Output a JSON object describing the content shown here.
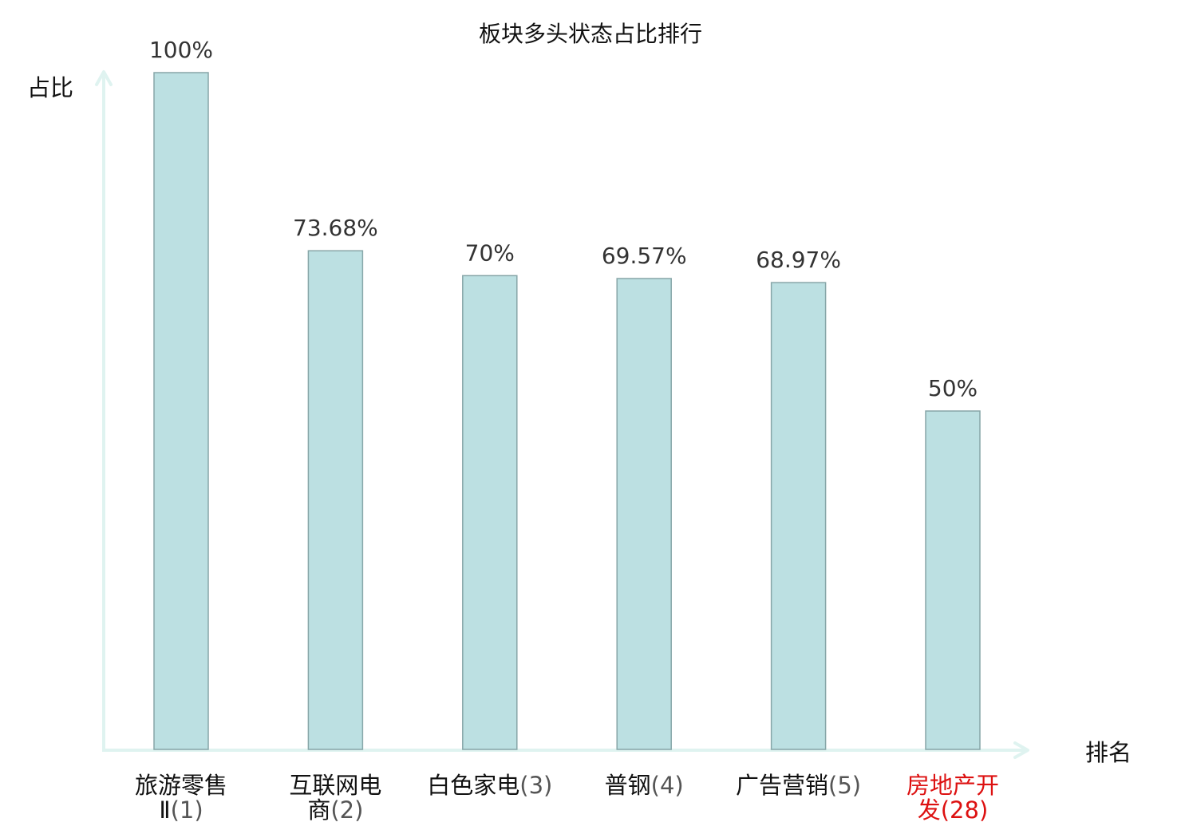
{
  "chart_data": {
    "type": "bar",
    "title": "板块多头状态占比排行",
    "ylabel": "占比",
    "xlabel": "排名",
    "ylim": [
      0,
      100
    ],
    "unit": "%",
    "grid": false,
    "categories": [
      {
        "lines": [
          "旅游零售",
          "Ⅱ"
        ],
        "rank": "(1)",
        "highlight": false
      },
      {
        "lines": [
          "互联网电",
          "商"
        ],
        "rank": "(2)",
        "highlight": false
      },
      {
        "lines": [
          "白色家电"
        ],
        "rank": "(3)",
        "highlight": false
      },
      {
        "lines": [
          "普钢"
        ],
        "rank": "(4)",
        "highlight": false
      },
      {
        "lines": [
          "广告营销"
        ],
        "rank": "(5)",
        "highlight": false
      },
      {
        "lines": [
          "房地产开",
          "发"
        ],
        "rank": "(28)",
        "highlight": true
      }
    ],
    "values": [
      100,
      73.68,
      70,
      69.57,
      68.97,
      50
    ],
    "value_labels": [
      "100%",
      "73.68%",
      "70%",
      "69.57%",
      "68.97%",
      "50%"
    ]
  },
  "colors": {
    "bar_fill": "#bce0e2",
    "bar_stroke": "#87a6a8",
    "axis": "#dff3f0",
    "label_normal": "#111111",
    "rank_normal": "#555555",
    "highlight": "#dd1111"
  }
}
